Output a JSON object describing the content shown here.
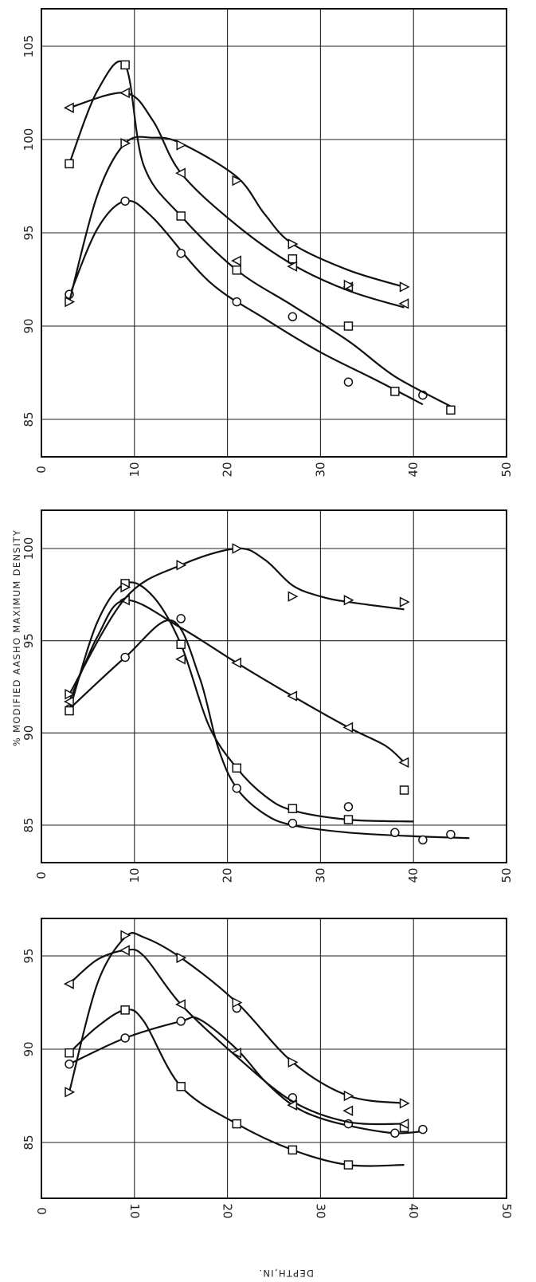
{
  "figure": {
    "y_axis_label": "% MODIFIED AASHO MAXIMUM DENSITY",
    "x_axis_label": "DEPTH,IN."
  },
  "chart_data": [
    {
      "type": "line",
      "orientation": "rotated-90",
      "x_axis": {
        "label": "",
        "range": [
          0,
          50
        ],
        "ticks": [
          0,
          10,
          20,
          30,
          40,
          50
        ]
      },
      "y_axis": {
        "label": "",
        "range": [
          83,
          106
        ],
        "ticks": [
          85,
          90,
          95,
          100,
          105
        ]
      },
      "grid": true,
      "series": [
        {
          "marker": "circle",
          "points": [
            [
              3,
              91.7
            ],
            [
              9,
              96.7
            ],
            [
              15,
              93.9
            ],
            [
              21,
              91.3
            ],
            [
              27,
              90.5
            ],
            [
              33,
              87.0
            ],
            [
              41,
              86.3
            ]
          ],
          "curve": [
            [
              3,
              91.6
            ],
            [
              6,
              95.2
            ],
            [
              9,
              96.7
            ],
            [
              12,
              95.8
            ],
            [
              18,
              92.4
            ],
            [
              24,
              90.4
            ],
            [
              30,
              88.6
            ],
            [
              36,
              87.1
            ],
            [
              41,
              85.8
            ]
          ]
        },
        {
          "marker": "square",
          "points": [
            [
              3,
              98.7
            ],
            [
              9,
              104.0
            ],
            [
              15,
              95.9
            ],
            [
              21,
              93.0
            ],
            [
              27,
              93.6
            ],
            [
              33,
              90.0
            ],
            [
              38,
              86.5
            ],
            [
              44,
              85.5
            ]
          ],
          "curve": [
            [
              3,
              98.7
            ],
            [
              6,
              102.6
            ],
            [
              9,
              104.0
            ],
            [
              11,
              98.6
            ],
            [
              15,
              95.9
            ],
            [
              21,
              93.0
            ],
            [
              27,
              91.1
            ],
            [
              33,
              89.2
            ],
            [
              38,
              87.3
            ],
            [
              44,
              85.7
            ]
          ]
        },
        {
          "marker": "triangle-left",
          "points": [
            [
              3,
              101.7
            ],
            [
              9,
              102.5
            ],
            [
              15,
              98.2
            ],
            [
              21,
              93.5
            ],
            [
              27,
              93.2
            ],
            [
              33,
              92.1
            ],
            [
              39,
              91.2
            ]
          ],
          "curve": [
            [
              3,
              101.7
            ],
            [
              9,
              102.5
            ],
            [
              12,
              101.0
            ],
            [
              15,
              98.2
            ],
            [
              21,
              95.4
            ],
            [
              27,
              93.3
            ],
            [
              33,
              91.9
            ],
            [
              39,
              91.0
            ]
          ]
        },
        {
          "marker": "triangle-right",
          "points": [
            [
              3,
              91.3
            ],
            [
              9,
              99.8
            ],
            [
              15,
              99.7
            ],
            [
              21,
              97.8
            ],
            [
              27,
              94.4
            ],
            [
              33,
              92.2
            ],
            [
              39,
              92.1
            ]
          ],
          "curve": [
            [
              3,
              91.3
            ],
            [
              6,
              97.0
            ],
            [
              9,
              99.8
            ],
            [
              12,
              100.1
            ],
            [
              15,
              99.8
            ],
            [
              21,
              98.0
            ],
            [
              24,
              96.0
            ],
            [
              27,
              94.4
            ],
            [
              33,
              93.0
            ],
            [
              39,
              92.1
            ]
          ]
        }
      ]
    },
    {
      "type": "line",
      "orientation": "rotated-90",
      "x_axis": {
        "label": "",
        "range": [
          0,
          50
        ],
        "ticks": [
          0,
          10,
          20,
          30,
          40,
          50
        ]
      },
      "y_axis": {
        "label": "",
        "range": [
          83,
          102
        ],
        "ticks": [
          85,
          90,
          95,
          100
        ]
      },
      "grid": true,
      "series": [
        {
          "marker": "circle",
          "points": [
            [
              3,
              91.3
            ],
            [
              9,
              94.1
            ],
            [
              15,
              96.2
            ],
            [
              21,
              87.0
            ],
            [
              27,
              85.1
            ],
            [
              33,
              86.0
            ],
            [
              38,
              84.6
            ],
            [
              41,
              84.2
            ],
            [
              44,
              84.5
            ]
          ],
          "curve": [
            [
              3,
              91.3
            ],
            [
              9,
              94.1
            ],
            [
              14,
              96.1
            ],
            [
              17,
              93.0
            ],
            [
              19,
              89.2
            ],
            [
              21,
              87.0
            ],
            [
              24,
              85.6
            ],
            [
              27,
              85.0
            ],
            [
              33,
              84.6
            ],
            [
              40,
              84.4
            ],
            [
              46,
              84.3
            ]
          ]
        },
        {
          "marker": "square",
          "points": [
            [
              3,
              91.2
            ],
            [
              9,
              98.1
            ],
            [
              15,
              94.8
            ],
            [
              21,
              88.1
            ],
            [
              27,
              85.9
            ],
            [
              33,
              85.3
            ],
            [
              39,
              86.9
            ]
          ],
          "curve": [
            [
              3,
              91.2
            ],
            [
              6,
              96.0
            ],
            [
              9,
              98.1
            ],
            [
              12,
              97.4
            ],
            [
              15,
              94.8
            ],
            [
              18,
              90.4
            ],
            [
              21,
              88.1
            ],
            [
              24,
              86.6
            ],
            [
              27,
              85.8
            ],
            [
              33,
              85.3
            ],
            [
              40,
              85.2
            ]
          ]
        },
        {
          "marker": "triangle-left",
          "points": [
            [
              3,
              91.7
            ],
            [
              9,
              97.2
            ],
            [
              15,
              94.0
            ],
            [
              21,
              93.8
            ],
            [
              27,
              92.0
            ],
            [
              33,
              90.3
            ],
            [
              39,
              88.4
            ]
          ],
          "curve": [
            [
              3,
              91.7
            ],
            [
              6,
              95.2
            ],
            [
              9,
              97.2
            ],
            [
              15,
              95.7
            ],
            [
              21,
              93.8
            ],
            [
              27,
              92.0
            ],
            [
              33,
              90.3
            ],
            [
              37,
              89.3
            ],
            [
              39,
              88.4
            ]
          ]
        },
        {
          "marker": "triangle-right",
          "points": [
            [
              3,
              92.1
            ],
            [
              9,
              97.9
            ],
            [
              15,
              99.1
            ],
            [
              21,
              100.0
            ],
            [
              27,
              97.4
            ],
            [
              33,
              97.2
            ],
            [
              39,
              97.1
            ]
          ],
          "curve": [
            [
              3,
              92.1
            ],
            [
              9,
              97.3
            ],
            [
              15,
              99.1
            ],
            [
              21,
              100.0
            ],
            [
              24,
              99.4
            ],
            [
              27,
              98.0
            ],
            [
              30,
              97.4
            ],
            [
              33,
              97.1
            ],
            [
              39,
              96.7
            ]
          ]
        }
      ]
    },
    {
      "type": "line",
      "orientation": "rotated-90",
      "x_axis": {
        "label": "",
        "range": [
          0,
          50
        ],
        "ticks": [
          0,
          10,
          20,
          30,
          40,
          50
        ]
      },
      "y_axis": {
        "label": "",
        "range": [
          82,
          97
        ],
        "ticks": [
          85,
          90,
          95
        ]
      },
      "grid": true,
      "series": [
        {
          "marker": "circle",
          "points": [
            [
              3,
              89.2
            ],
            [
              9,
              90.6
            ],
            [
              15,
              91.5
            ],
            [
              21,
              92.2
            ],
            [
              27,
              87.4
            ],
            [
              33,
              86.0
            ],
            [
              38,
              85.5
            ],
            [
              41,
              85.7
            ]
          ],
          "curve": [
            [
              3,
              89.2
            ],
            [
              9,
              90.6
            ],
            [
              15,
              91.5
            ],
            [
              17,
              91.6
            ],
            [
              21,
              90.0
            ],
            [
              24,
              88.3
            ],
            [
              27,
              87.0
            ],
            [
              30,
              86.3
            ],
            [
              34,
              85.8
            ],
            [
              38,
              85.5
            ],
            [
              41,
              85.6
            ]
          ]
        },
        {
          "marker": "square",
          "points": [
            [
              3,
              89.8
            ],
            [
              9,
              92.1
            ],
            [
              15,
              88.0
            ],
            [
              21,
              86.0
            ],
            [
              27,
              84.6
            ],
            [
              33,
              83.8
            ],
            [
              39,
              85.8
            ]
          ],
          "curve": [
            [
              3,
              89.8
            ],
            [
              6,
              91.2
            ],
            [
              9,
              92.1
            ],
            [
              11,
              91.5
            ],
            [
              15,
              88.0
            ],
            [
              21,
              86.0
            ],
            [
              27,
              84.6
            ],
            [
              33,
              83.8
            ],
            [
              39,
              83.8
            ]
          ]
        },
        {
          "marker": "triangle-left",
          "points": [
            [
              3,
              93.5
            ],
            [
              9,
              95.3
            ],
            [
              15,
              92.4
            ],
            [
              21,
              89.8
            ],
            [
              27,
              87.0
            ],
            [
              33,
              86.7
            ],
            [
              39,
              86.0
            ]
          ],
          "curve": [
            [
              3,
              93.5
            ],
            [
              6,
              94.8
            ],
            [
              9,
              95.3
            ],
            [
              11,
              95.0
            ],
            [
              15,
              92.4
            ],
            [
              21,
              89.6
            ],
            [
              27,
              87.2
            ],
            [
              33,
              86.1
            ],
            [
              39,
              86.0
            ]
          ]
        },
        {
          "marker": "triangle-right",
          "points": [
            [
              3,
              87.7
            ],
            [
              9,
              96.1
            ],
            [
              15,
              94.9
            ],
            [
              21,
              92.5
            ],
            [
              27,
              89.3
            ],
            [
              33,
              87.5
            ],
            [
              39,
              87.1
            ]
          ],
          "curve": [
            [
              3,
              87.7
            ],
            [
              6,
              93.5
            ],
            [
              9,
              96.0
            ],
            [
              11,
              96.0
            ],
            [
              15,
              94.9
            ],
            [
              21,
              92.5
            ],
            [
              27,
              89.3
            ],
            [
              33,
              87.5
            ],
            [
              39,
              87.1
            ]
          ]
        }
      ]
    }
  ]
}
